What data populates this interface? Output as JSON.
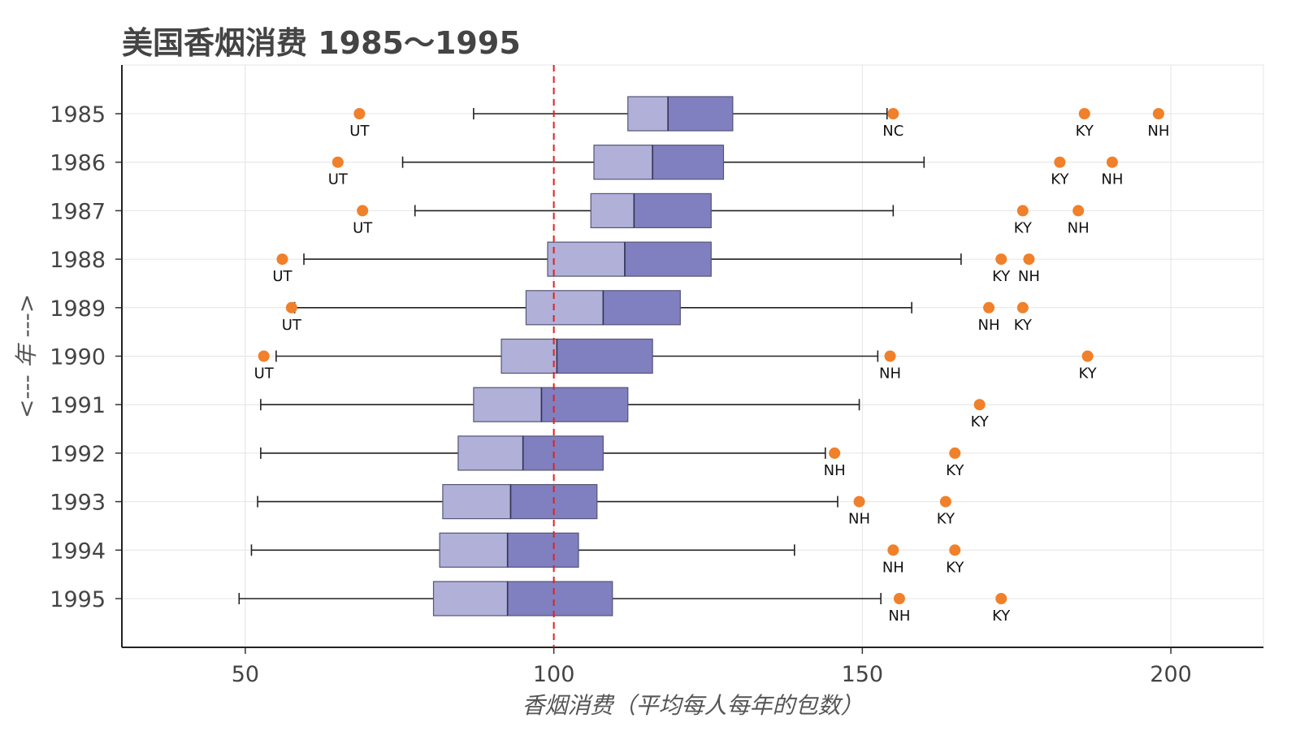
{
  "chart_data": {
    "type": "boxplot",
    "orientation": "horizontal",
    "title": "美国香烟消费 1985～1995",
    "xlabel": "香烟消费（平均每人每年的包数）",
    "ylabel": "<--- 年 --->",
    "xlim": [
      30,
      215
    ],
    "xticks": [
      50,
      100,
      150,
      200
    ],
    "grid": true,
    "reference_line": {
      "value": 100,
      "color": "#e02020",
      "style": "dashed"
    },
    "colors": {
      "lower_box": "#b0b0d9",
      "upper_box": "#8080c0",
      "box_edge": "#555577",
      "whisker": "#222222",
      "outlier": "#f0802a"
    },
    "categories": [
      "1985",
      "1986",
      "1987",
      "1988",
      "1989",
      "1990",
      "1991",
      "1992",
      "1993",
      "1994",
      "1995"
    ],
    "boxes": [
      {
        "year": "1985",
        "whisker_low": 87,
        "q1": 112,
        "median": 118.5,
        "q3": 129,
        "whisker_high": 154
      },
      {
        "year": "1986",
        "whisker_low": 75.5,
        "q1": 106.5,
        "median": 116,
        "q3": 127.5,
        "whisker_high": 160
      },
      {
        "year": "1987",
        "whisker_low": 77.5,
        "q1": 106,
        "median": 113,
        "q3": 125.5,
        "whisker_high": 155
      },
      {
        "year": "1988",
        "whisker_low": 59.5,
        "q1": 99,
        "median": 111.5,
        "q3": 125.5,
        "whisker_high": 166
      },
      {
        "year": "1989",
        "whisker_low": 58,
        "q1": 95.5,
        "median": 108,
        "q3": 120.5,
        "whisker_high": 158
      },
      {
        "year": "1990",
        "whisker_low": 55,
        "q1": 91.5,
        "median": 100.5,
        "q3": 116,
        "whisker_high": 152.5
      },
      {
        "year": "1991",
        "whisker_low": 52.5,
        "q1": 87,
        "median": 98,
        "q3": 112,
        "whisker_high": 149.5
      },
      {
        "year": "1992",
        "whisker_low": 52.5,
        "q1": 84.5,
        "median": 95,
        "q3": 108,
        "whisker_high": 144
      },
      {
        "year": "1993",
        "whisker_low": 52,
        "q1": 82,
        "median": 93,
        "q3": 107,
        "whisker_high": 146
      },
      {
        "year": "1994",
        "whisker_low": 51,
        "q1": 81.5,
        "median": 92.5,
        "q3": 104,
        "whisker_high": 139
      },
      {
        "year": "1995",
        "whisker_low": 49,
        "q1": 80.5,
        "median": 92.5,
        "q3": 109.5,
        "whisker_high": 153
      }
    ],
    "outliers": [
      {
        "year": "1985",
        "value": 68.5,
        "label": "UT"
      },
      {
        "year": "1985",
        "value": 155,
        "label": "NC"
      },
      {
        "year": "1985",
        "value": 186,
        "label": "KY"
      },
      {
        "year": "1985",
        "value": 198,
        "label": "NH"
      },
      {
        "year": "1986",
        "value": 65,
        "label": "UT"
      },
      {
        "year": "1986",
        "value": 182,
        "label": "KY"
      },
      {
        "year": "1986",
        "value": 190.5,
        "label": "NH"
      },
      {
        "year": "1987",
        "value": 69,
        "label": "UT"
      },
      {
        "year": "1987",
        "value": 176,
        "label": "KY"
      },
      {
        "year": "1987",
        "value": 185,
        "label": "NH"
      },
      {
        "year": "1988",
        "value": 56,
        "label": "UT"
      },
      {
        "year": "1988",
        "value": 172.5,
        "label": "KY"
      },
      {
        "year": "1988",
        "value": 177,
        "label": "NH"
      },
      {
        "year": "1989",
        "value": 57.5,
        "label": "UT"
      },
      {
        "year": "1989",
        "value": 170.5,
        "label": "NH"
      },
      {
        "year": "1989",
        "value": 176,
        "label": "KY"
      },
      {
        "year": "1990",
        "value": 53,
        "label": "UT"
      },
      {
        "year": "1990",
        "value": 154.5,
        "label": "NH"
      },
      {
        "year": "1990",
        "value": 186.5,
        "label": "KY"
      },
      {
        "year": "1991",
        "value": 169,
        "label": "KY"
      },
      {
        "year": "1992",
        "value": 145.5,
        "label": "NH"
      },
      {
        "year": "1992",
        "value": 165,
        "label": "KY"
      },
      {
        "year": "1993",
        "value": 149.5,
        "label": "NH"
      },
      {
        "year": "1993",
        "value": 163.5,
        "label": "KY"
      },
      {
        "year": "1994",
        "value": 155,
        "label": "NH"
      },
      {
        "year": "1994",
        "value": 165,
        "label": "KY"
      },
      {
        "year": "1995",
        "value": 156,
        "label": "NH"
      },
      {
        "year": "1995",
        "value": 172.5,
        "label": "KY"
      }
    ]
  }
}
